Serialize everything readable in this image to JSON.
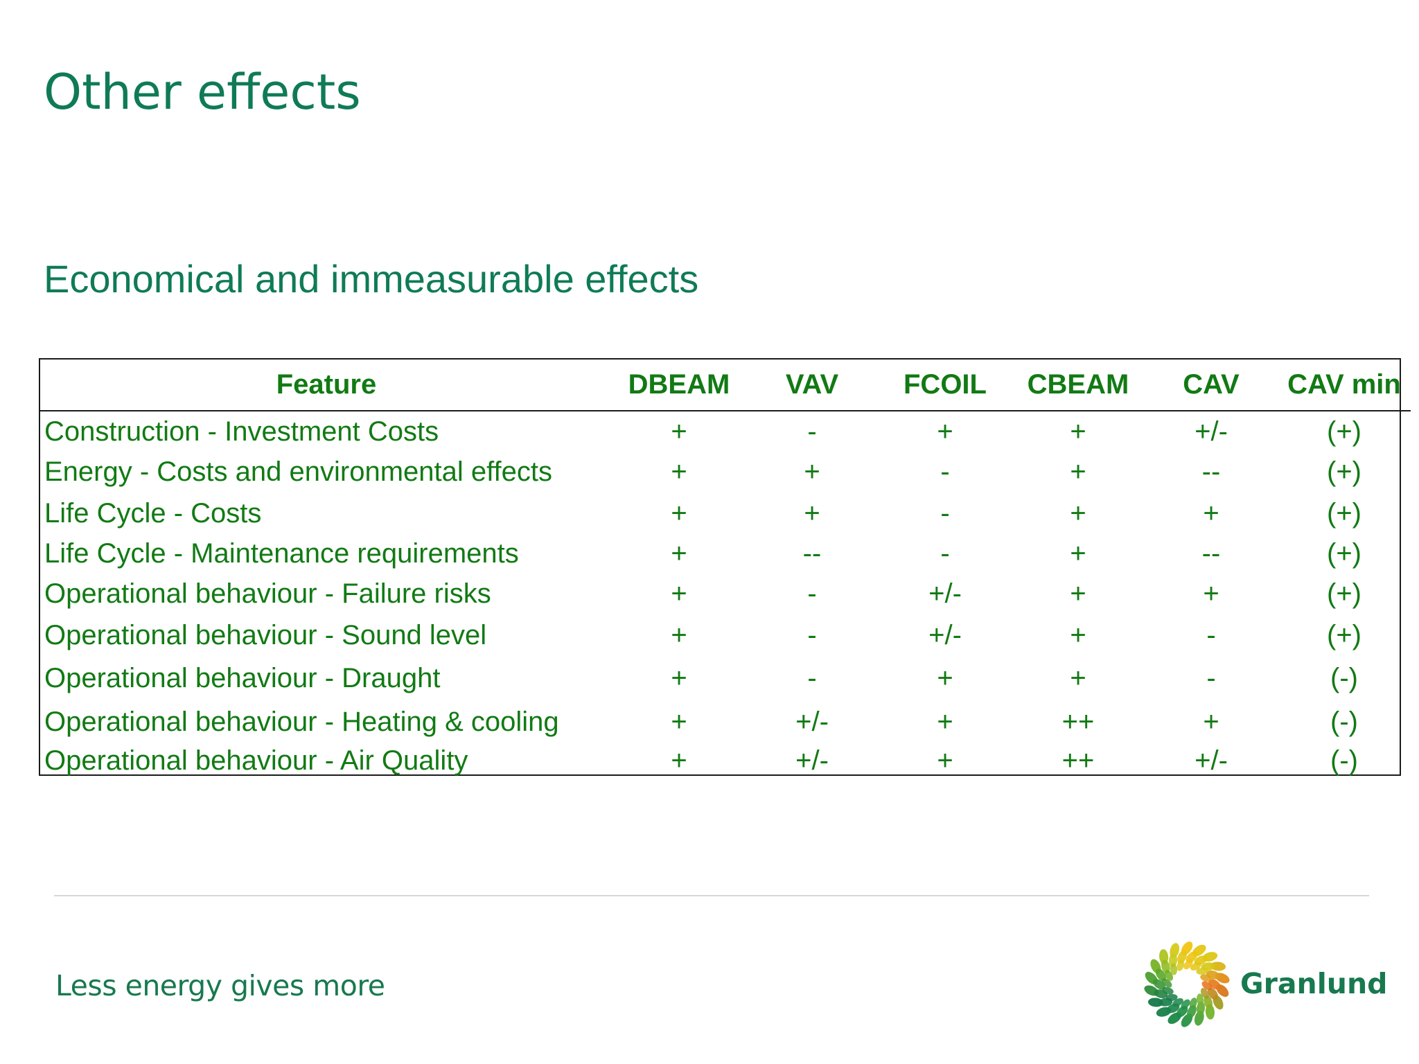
{
  "slide": {
    "title": "Other effects",
    "subtitle": "Economical and immeasurable effects"
  },
  "table": {
    "headers": [
      "Feature",
      "DBEAM",
      "VAV",
      "FCOIL",
      "CBEAM",
      "CAV",
      "CAV min"
    ],
    "rows": [
      [
        "Construction - Investment Costs",
        "+",
        "-",
        "+",
        "+",
        "+/-",
        "(+)"
      ],
      [
        "Energy - Costs and environmental effects",
        "+",
        "+",
        "-",
        "+",
        "--",
        "(+)"
      ],
      [
        "Life Cycle - Costs",
        "+",
        "+",
        "-",
        "+",
        "+",
        "(+)"
      ],
      [
        "Life Cycle - Maintenance requirements",
        "+",
        "--",
        "-",
        "+",
        "--",
        "(+)"
      ],
      [
        "Operational behaviour - Failure risks",
        "+",
        "-",
        "+/-",
        "+",
        "+",
        "(+)"
      ],
      [
        "Operational behaviour - Sound level",
        "+",
        "-",
        "+/-",
        "+",
        "-",
        "(+)"
      ],
      [
        "Operational behaviour - Draught",
        "+",
        "-",
        "+",
        "+",
        "-",
        "(-)"
      ],
      [
        "Operational behaviour - Heating & cooling",
        "+",
        "+/-",
        "+",
        "++",
        "+",
        "(-)"
      ],
      [
        "Operational behaviour - Air Quality",
        "+",
        "+/-",
        "+",
        "++",
        "+/-",
        "(-)"
      ]
    ]
  },
  "footer": {
    "tagline": "Less energy gives more",
    "logo_text": "Granlund",
    "logo_icon": "granlund-logo-icon"
  },
  "colors": {
    "title_green": "#0f7b56",
    "table_green": "#127a14",
    "border": "#1a1a1a",
    "divider": "#d6d6d6"
  }
}
